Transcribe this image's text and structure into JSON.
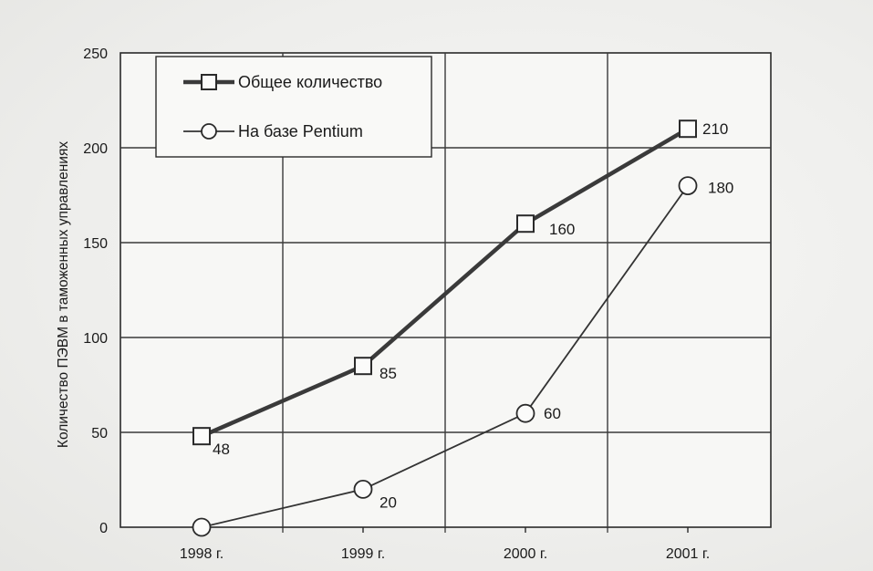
{
  "chart_data": {
    "type": "line",
    "categories": [
      "1998 г.",
      "1999 г.",
      "2000 г.",
      "2001 г."
    ],
    "series": [
      {
        "name": "Общее количество",
        "values": [
          48,
          85,
          160,
          210
        ],
        "marker": "square",
        "style": "thick",
        "color": "#3a3a3a",
        "data_labels": [
          "48",
          "85",
          "160",
          "210"
        ]
      },
      {
        "name": "На базе Pentium",
        "values": [
          0,
          20,
          60,
          180
        ],
        "marker": "circle",
        "style": "thin",
        "color": "#333333",
        "data_labels": [
          "",
          "20",
          "60",
          "180"
        ]
      }
    ],
    "ylabel": "Количество ПЭВМ в таможенных управлениях",
    "xlabel": "",
    "ylim": [
      0,
      250
    ],
    "yticks": [
      "0",
      "50",
      "100",
      "150",
      "200",
      "250"
    ],
    "grid": true,
    "legend_position": "top-left"
  }
}
